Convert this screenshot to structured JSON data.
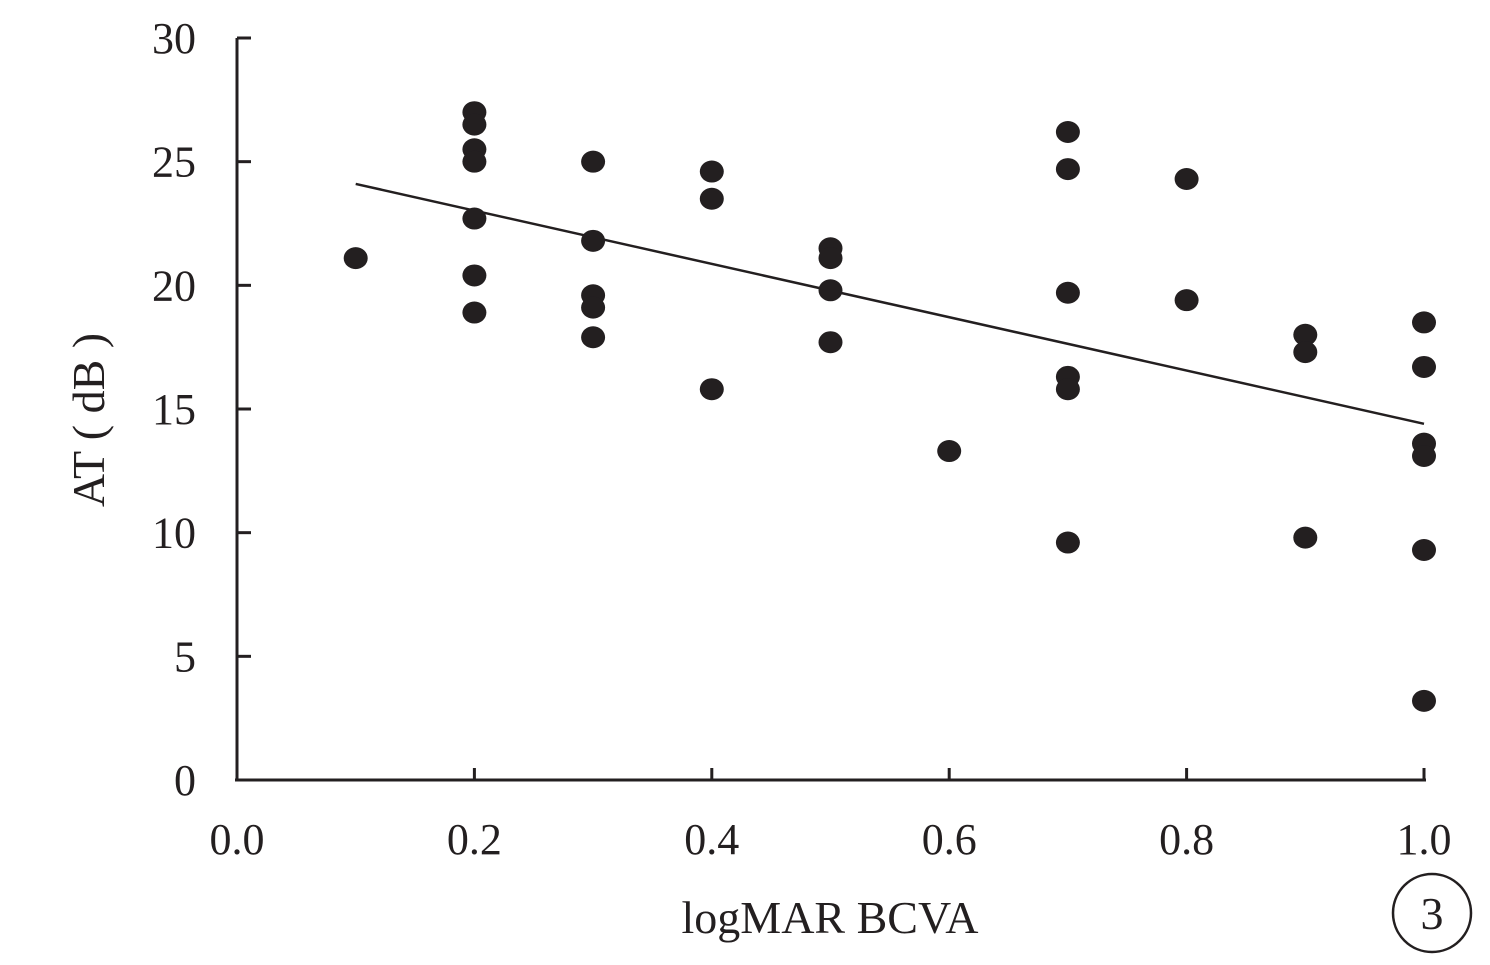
{
  "chart_data": {
    "type": "scatter",
    "xlabel": "logMAR BCVA",
    "ylabel": "AT ( dB )",
    "xlim": [
      0.0,
      1.0
    ],
    "ylim": [
      0,
      30
    ],
    "xticks": [
      "0.0",
      "0.2",
      "0.4",
      "0.6",
      "0.8",
      "1.0"
    ],
    "yticks": [
      "0",
      "5",
      "10",
      "15",
      "20",
      "25",
      "30"
    ],
    "grid": false,
    "panel_label": "3",
    "trendline": {
      "x": [
        0.1,
        1.0
      ],
      "y": [
        24.1,
        14.4
      ]
    },
    "points": [
      {
        "x": 0.1,
        "y": 21.1
      },
      {
        "x": 0.2,
        "y": 27.0
      },
      {
        "x": 0.2,
        "y": 26.5
      },
      {
        "x": 0.2,
        "y": 25.5
      },
      {
        "x": 0.2,
        "y": 25.0
      },
      {
        "x": 0.2,
        "y": 22.7
      },
      {
        "x": 0.2,
        "y": 20.4
      },
      {
        "x": 0.2,
        "y": 18.9
      },
      {
        "x": 0.3,
        "y": 25.0
      },
      {
        "x": 0.3,
        "y": 21.8
      },
      {
        "x": 0.3,
        "y": 19.6
      },
      {
        "x": 0.3,
        "y": 19.1
      },
      {
        "x": 0.3,
        "y": 17.9
      },
      {
        "x": 0.4,
        "y": 24.6
      },
      {
        "x": 0.4,
        "y": 23.5
      },
      {
        "x": 0.4,
        "y": 15.8
      },
      {
        "x": 0.5,
        "y": 21.5
      },
      {
        "x": 0.5,
        "y": 21.1
      },
      {
        "x": 0.5,
        "y": 19.8
      },
      {
        "x": 0.5,
        "y": 17.7
      },
      {
        "x": 0.6,
        "y": 13.3
      },
      {
        "x": 0.7,
        "y": 26.2
      },
      {
        "x": 0.7,
        "y": 24.7
      },
      {
        "x": 0.7,
        "y": 19.7
      },
      {
        "x": 0.7,
        "y": 16.3
      },
      {
        "x": 0.7,
        "y": 15.8
      },
      {
        "x": 0.7,
        "y": 9.6
      },
      {
        "x": 0.8,
        "y": 24.3
      },
      {
        "x": 0.8,
        "y": 19.4
      },
      {
        "x": 0.9,
        "y": 18.0
      },
      {
        "x": 0.9,
        "y": 17.3
      },
      {
        "x": 0.9,
        "y": 9.8
      },
      {
        "x": 1.0,
        "y": 18.5
      },
      {
        "x": 1.0,
        "y": 16.7
      },
      {
        "x": 1.0,
        "y": 13.6
      },
      {
        "x": 1.0,
        "y": 13.1
      },
      {
        "x": 1.0,
        "y": 9.3
      },
      {
        "x": 1.0,
        "y": 3.2
      }
    ]
  }
}
